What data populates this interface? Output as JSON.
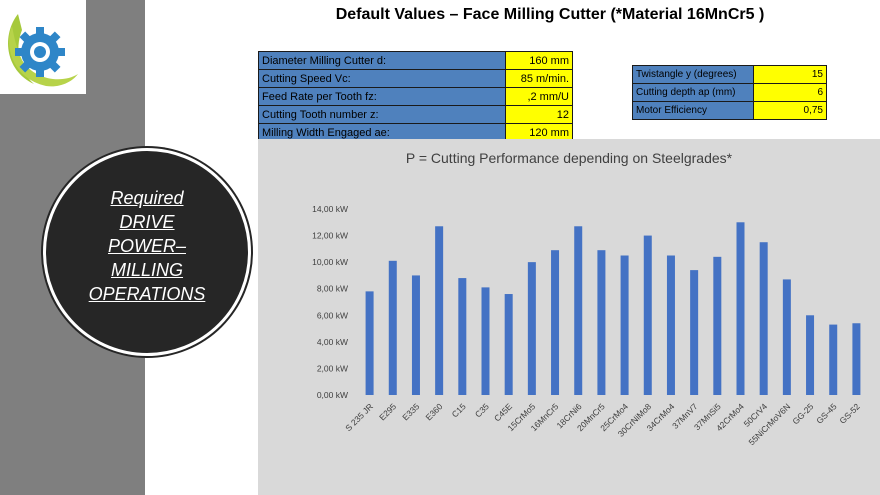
{
  "title": "Default Values – Face Milling Cutter (*Material 16MnCr5 )",
  "params_left": [
    {
      "label": "Diameter Milling Cutter d:",
      "value": "160 mm"
    },
    {
      "label": "Cutting Speed Vc:",
      "value": "85 m/min."
    },
    {
      "label": "Feed Rate per Tooth fz:",
      "value": ",2 mm/U"
    },
    {
      "label": "Cutting Tooth number z:",
      "value": "12"
    },
    {
      "label": "Milling Width Engaged ae:",
      "value": "120 mm"
    }
  ],
  "params_right": [
    {
      "label": "Twistangle  y (degrees)",
      "value": "15"
    },
    {
      "label": "Cutting depth ap (mm)",
      "value": "6"
    },
    {
      "label": "Motor Efficiency",
      "value": "0,75"
    }
  ],
  "circle_lines": [
    "Required",
    "DRIVE",
    "POWER–",
    "MILLING",
    "OPERATIONS"
  ],
  "colors": {
    "bar": "#4472c4",
    "label_cell": "#4f81bd",
    "value_cell": "#ffff00",
    "chart_bg": "#d9d9d9",
    "side_band": "#7f7f7f",
    "circle": "#262626"
  },
  "chart_data": {
    "type": "bar",
    "title": "P = Cutting Performance depending on Steelgrades*",
    "categories": [
      "S 235 JR",
      "E295",
      "E335",
      "E360",
      "C15",
      "C35",
      "C45E",
      "15CrMo5",
      "16MnCr5",
      "18CrNi6",
      "20MnCr5",
      "25CrMo4",
      "30CrNiMo8",
      "34CrMo4",
      "37MnV7",
      "37MnSi5",
      "42CrMo4",
      "50CrV4",
      "55NiCrMoV6N",
      "GG-25",
      "GS-45",
      "GS-52"
    ],
    "values": [
      7.8,
      10.1,
      9.0,
      12.7,
      8.8,
      8.1,
      7.6,
      10.0,
      10.9,
      12.7,
      10.9,
      10.5,
      12.0,
      10.5,
      9.4,
      10.4,
      13.0,
      11.5,
      8.7,
      6.0,
      5.3,
      5.4
    ],
    "yticks": [
      "0,00 kW",
      "2,00 kW",
      "4,00 kW",
      "6,00 kW",
      "8,00 kW",
      "10,00 kW",
      "12,00 kW",
      "14,00 kW"
    ],
    "ylim": [
      0,
      14
    ],
    "xlabel": "",
    "ylabel": "",
    "grid": false
  }
}
